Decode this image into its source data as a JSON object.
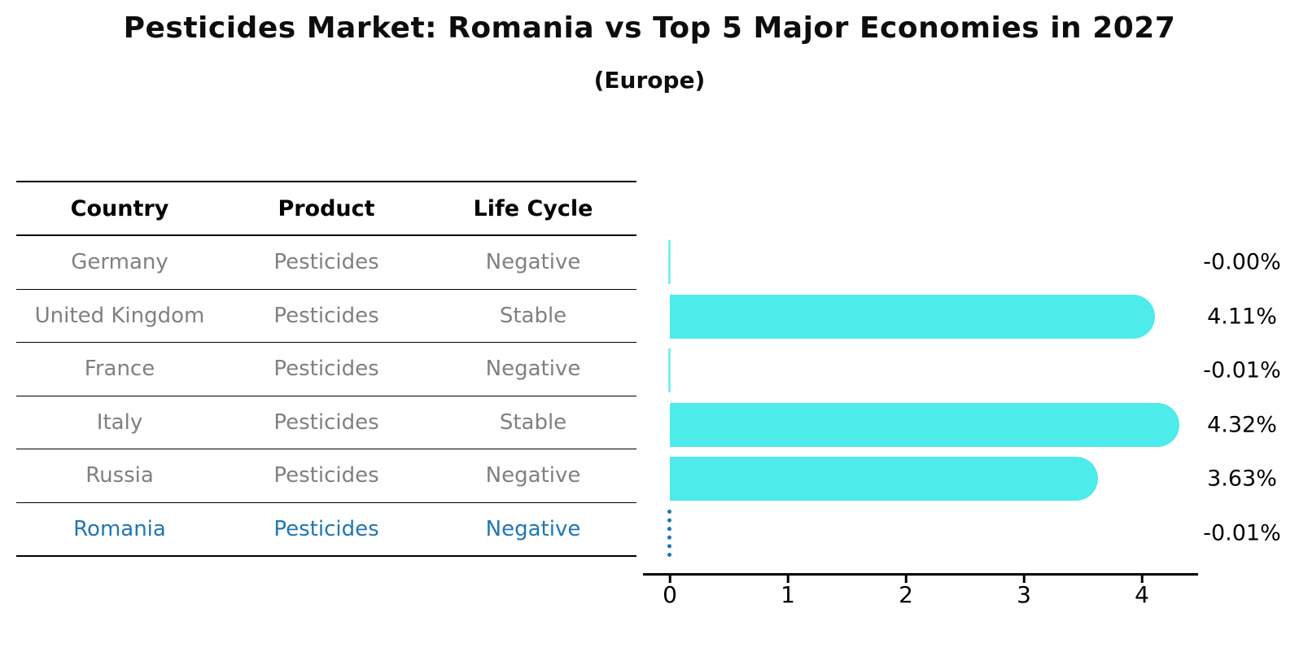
{
  "header": {
    "title": "Pesticides Market: Romania vs Top 5 Major Economies in 2027",
    "subtitle": "(Europe)"
  },
  "table": {
    "headers": {
      "country": "Country",
      "product": "Product",
      "life_cycle": "Life Cycle"
    },
    "rows": [
      {
        "country": "Germany",
        "product": "Pesticides",
        "life_cycle": "Negative",
        "highlight": false
      },
      {
        "country": "United Kingdom",
        "product": "Pesticides",
        "life_cycle": "Stable",
        "highlight": false
      },
      {
        "country": "France",
        "product": "Pesticides",
        "life_cycle": "Negative",
        "highlight": false
      },
      {
        "country": "Italy",
        "product": "Pesticides",
        "life_cycle": "Stable",
        "highlight": false
      },
      {
        "country": "Russia",
        "product": "Pesticides",
        "life_cycle": "Negative",
        "highlight": false
      },
      {
        "country": "Romania",
        "product": "Pesticides",
        "life_cycle": "Negative",
        "highlight": true
      }
    ]
  },
  "chart_data": {
    "type": "bar",
    "orientation": "horizontal",
    "title": "Pesticides Market: Romania vs Top 5 Major Economies in 2027",
    "subtitle": "(Europe)",
    "categories": [
      "Germany",
      "United Kingdom",
      "France",
      "Italy",
      "Russia",
      "Romania"
    ],
    "values": [
      -0.0,
      4.11,
      -0.01,
      4.32,
      3.63,
      -0.01
    ],
    "value_labels": [
      "-0.00%",
      "4.11%",
      "-0.01%",
      "4.32%",
      "3.63%",
      "-0.01%"
    ],
    "bar_kinds": [
      "zero",
      "bar",
      "zero",
      "bar",
      "bar",
      "zero-highlight"
    ],
    "x_ticks": [
      0,
      1,
      2,
      3,
      4
    ],
    "xlim": [
      -0.23,
      4.55
    ],
    "grid": false,
    "legend": false,
    "bar_color": "#4DEBE9",
    "highlight_color": "#1f77b4",
    "text_gray": "#808080"
  }
}
